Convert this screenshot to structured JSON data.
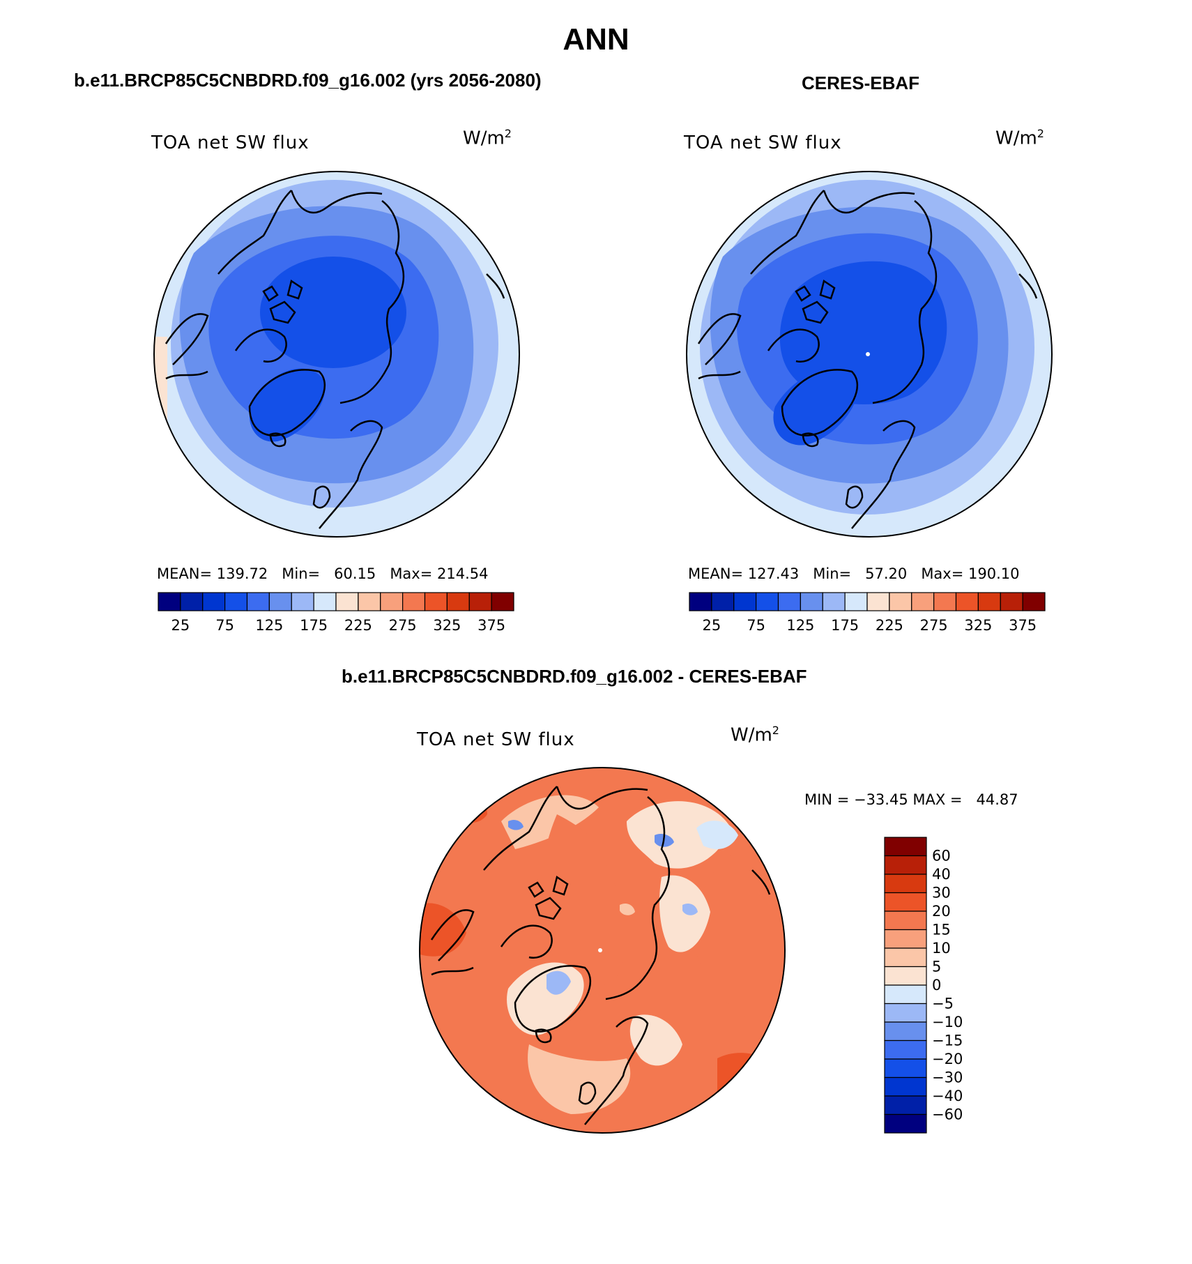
{
  "title": "ANN",
  "panels": [
    {
      "id": "model",
      "subtitle": "b.e11.BRCP85C5CNBDRD.f09_g16.002 (yrs 2056-2080)",
      "variable": "TOA net SW flux",
      "units": "W/m",
      "units_sup": "2",
      "stats": {
        "mean_label": "MEAN=",
        "mean": "139.72",
        "min_label": "Min=",
        "min": "60.15",
        "max_label": "Max=",
        "max": "214.54"
      }
    },
    {
      "id": "obs",
      "subtitle": "CERES-EBAF",
      "variable": "TOA net SW flux",
      "units": "W/m",
      "units_sup": "2",
      "stats": {
        "mean_label": "MEAN=",
        "mean": "127.43",
        "min_label": "Min=",
        "min": "57.20",
        "max_label": "Max=",
        "max": "190.10"
      }
    },
    {
      "id": "diff",
      "subtitle": "b.e11.BRCP85C5CNBDRD.f09_g16.002 - CERES-EBAF",
      "variable": "TOA net SW flux",
      "units": "W/m",
      "units_sup": "2",
      "minmax_text": "MIN = −33.45 MAX =   44.87"
    }
  ],
  "chart_data": [
    {
      "type": "heatmap",
      "projection": "north-polar-stereographic",
      "title": "b.e11.BRCP85C5CNBDRD.f09_g16.002 (yrs 2056-2080)",
      "variable": "TOA net SW flux",
      "units": "W/m^2",
      "mean": 139.72,
      "min": 60.15,
      "max": 214.54,
      "colorbar": {
        "orientation": "horizontal",
        "colors": [
          "#00007f",
          "#0020a8",
          "#0036d0",
          "#1450e8",
          "#3c6cf0",
          "#6890ee",
          "#9cb8f6",
          "#d6e8fb",
          "#fbe3d2",
          "#fbc6a8",
          "#f8a07c",
          "#f37850",
          "#ec5428",
          "#d83a10",
          "#b82008",
          "#800000"
        ],
        "tick_labels": [
          "25",
          "75",
          "125",
          "175",
          "225",
          "275",
          "325",
          "375"
        ]
      }
    },
    {
      "type": "heatmap",
      "projection": "north-polar-stereographic",
      "title": "CERES-EBAF",
      "variable": "TOA net SW flux",
      "units": "W/m^2",
      "mean": 127.43,
      "min": 57.2,
      "max": 190.1,
      "colorbar": {
        "orientation": "horizontal",
        "colors": [
          "#00007f",
          "#0020a8",
          "#0036d0",
          "#1450e8",
          "#3c6cf0",
          "#6890ee",
          "#9cb8f6",
          "#d6e8fb",
          "#fbe3d2",
          "#fbc6a8",
          "#f8a07c",
          "#f37850",
          "#ec5428",
          "#d83a10",
          "#b82008",
          "#800000"
        ],
        "tick_labels": [
          "25",
          "75",
          "125",
          "175",
          "225",
          "275",
          "325",
          "375"
        ]
      }
    },
    {
      "type": "heatmap",
      "projection": "north-polar-stereographic",
      "title": "b.e11.BRCP85C5CNBDRD.f09_g16.002 - CERES-EBAF",
      "variable": "TOA net SW flux",
      "units": "W/m^2",
      "min": -33.45,
      "max": 44.87,
      "colorbar": {
        "orientation": "vertical",
        "colors_top_to_bottom": [
          "#800000",
          "#b82008",
          "#d83a10",
          "#ec5428",
          "#f37850",
          "#f8a07c",
          "#fbc6a8",
          "#fbe3d2",
          "#d6e8fb",
          "#9cb8f6",
          "#6890ee",
          "#3c6cf0",
          "#1450e8",
          "#0036d0",
          "#0020a8",
          "#00007f"
        ],
        "tick_labels": [
          "60",
          "40",
          "30",
          "20",
          "15",
          "10",
          "5",
          "0",
          "−5",
          "−10",
          "−15",
          "−20",
          "−30",
          "−40",
          "−60"
        ]
      }
    }
  ]
}
